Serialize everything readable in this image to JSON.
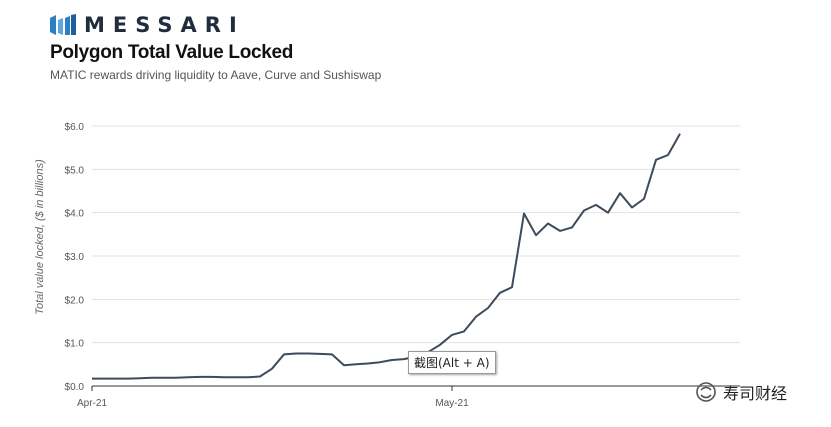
{
  "brand": {
    "name": "MESSARI"
  },
  "chart_data": {
    "type": "line",
    "title": "Polygon Total Value Locked",
    "subtitle": "MATIC rewards driving liquidity to Aave, Curve and Sushiswap",
    "ylabel": "Total value locked, ($ in billions)",
    "xlabel": "",
    "y_ticks": [
      "$0.0",
      "$1.0",
      "$2.0",
      "$3.0",
      "$4.0",
      "$5.0",
      "$6.0"
    ],
    "ylim": [
      0,
      6
    ],
    "x_ticks": [
      {
        "label": "Apr-21",
        "date": "2021-04-01"
      },
      {
        "label": "May-21",
        "date": "2021-05-01"
      }
    ],
    "xlim": [
      "2021-04-01",
      "2021-05-25"
    ],
    "grid": "horizontal",
    "line_color": "#3d4b5c",
    "series": [
      {
        "x": [
          "2021-04-01",
          "2021-04-02",
          "2021-04-03",
          "2021-04-04",
          "2021-04-05",
          "2021-04-06",
          "2021-04-07",
          "2021-04-08",
          "2021-04-09",
          "2021-04-10",
          "2021-04-11",
          "2021-04-12",
          "2021-04-13",
          "2021-04-14",
          "2021-04-15",
          "2021-04-16",
          "2021-04-17",
          "2021-04-18",
          "2021-04-19",
          "2021-04-20",
          "2021-04-21",
          "2021-04-22",
          "2021-04-23",
          "2021-04-24",
          "2021-04-25",
          "2021-04-26",
          "2021-04-27",
          "2021-04-28",
          "2021-04-29",
          "2021-04-30",
          "2021-05-01",
          "2021-05-02",
          "2021-05-03",
          "2021-05-04",
          "2021-05-05",
          "2021-05-06",
          "2021-05-07",
          "2021-05-08",
          "2021-05-09",
          "2021-05-10",
          "2021-05-11",
          "2021-05-12",
          "2021-05-13",
          "2021-05-14",
          "2021-05-15",
          "2021-05-16",
          "2021-05-17",
          "2021-05-18",
          "2021-05-19",
          "2021-05-20",
          "2021-05-21",
          "2021-05-22",
          "2021-05-23",
          "2021-05-24",
          "2021-05-25"
        ],
        "values": [
          0.17,
          0.17,
          0.17,
          0.17,
          0.18,
          0.19,
          0.19,
          0.19,
          0.2,
          0.21,
          0.21,
          0.2,
          0.2,
          0.2,
          0.22,
          0.4,
          0.73,
          0.75,
          0.75,
          0.74,
          0.73,
          0.48,
          0.5,
          0.52,
          0.55,
          0.6,
          0.62,
          0.68,
          0.78,
          0.95,
          1.18,
          1.26,
          1.6,
          1.8,
          2.15,
          2.28,
          3.98,
          3.48,
          3.75,
          3.58,
          3.66,
          4.05,
          4.18,
          4.0,
          4.45,
          4.12,
          4.32,
          5.22,
          5.33,
          5.82,
          5.82,
          5.82,
          5.82,
          5.82,
          5.82
        ]
      }
    ]
  },
  "tooltip": {
    "text": "截图(Alt + A)"
  },
  "watermark": {
    "text": "寿司财经"
  }
}
